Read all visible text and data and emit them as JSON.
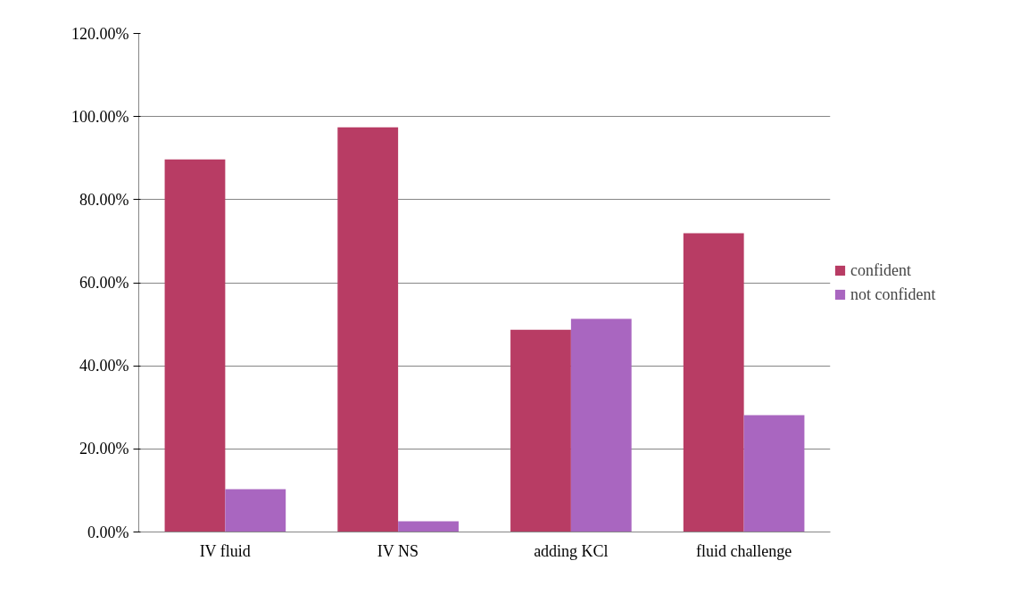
{
  "chart_data": {
    "type": "bar",
    "categories": [
      "IV fluid",
      "IV NS",
      "adding KCl",
      "fluid challenge"
    ],
    "series": [
      {
        "name": "confident",
        "color": "#b83c64",
        "values": [
          89.7,
          97.4,
          48.7,
          71.9
        ]
      },
      {
        "name": "not confident",
        "color": "#a966c0",
        "values": [
          10.3,
          2.6,
          51.3,
          28.1
        ]
      }
    ],
    "ylim": [
      0,
      120
    ],
    "yticks": [
      {
        "value": 0,
        "label": "0.00%"
      },
      {
        "value": 20,
        "label": "20.00%"
      },
      {
        "value": 40,
        "label": "40.00%"
      },
      {
        "value": 60,
        "label": "60.00%"
      },
      {
        "value": 80,
        "label": "80.00%"
      },
      {
        "value": 100,
        "label": "100.00%"
      },
      {
        "value": 120,
        "label": "120.00%"
      }
    ],
    "grid": "y",
    "legend": "right"
  }
}
